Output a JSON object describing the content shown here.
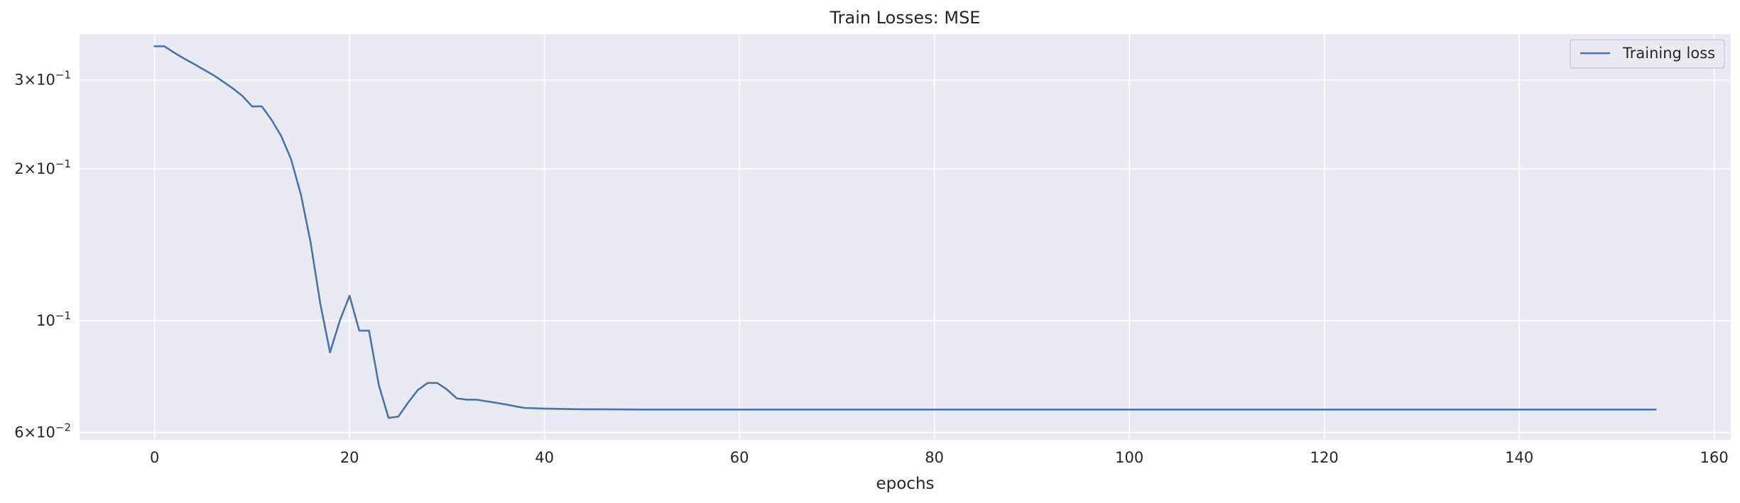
{
  "chart_data": {
    "type": "line",
    "title": "Train Losses:  MSE",
    "xlabel": "epochs",
    "ylabel": "",
    "yscale": "log",
    "xlim": [
      -7.7,
      161.7
    ],
    "ylim": [
      0.058,
      0.37
    ],
    "xticks": [
      0,
      20,
      40,
      60,
      80,
      100,
      120,
      140,
      160
    ],
    "yticks": [
      {
        "value": 0.06,
        "mantissa": "6",
        "exponent": "−2"
      },
      {
        "value": 0.1,
        "mantissa": "",
        "exponent": "−1"
      },
      {
        "value": 0.2,
        "mantissa": "2",
        "exponent": "−1"
      },
      {
        "value": 0.3,
        "mantissa": "3",
        "exponent": "−1"
      }
    ],
    "grid": true,
    "legend_position": "top-right",
    "colors": {
      "background": "#eaeaf2",
      "grid": "#ffffff",
      "line": "#4c72b0"
    },
    "series": [
      {
        "name": "Training loss",
        "x": [
          0,
          1,
          2,
          3,
          4,
          5,
          6,
          7,
          8,
          9,
          10,
          11,
          12,
          13,
          14,
          15,
          16,
          17,
          18,
          19,
          20,
          21,
          22,
          23,
          24,
          25,
          26,
          27,
          28,
          29,
          30,
          31,
          32,
          33,
          34,
          35,
          36,
          37,
          38,
          39,
          40,
          42,
          44,
          46,
          50,
          60,
          80,
          100,
          120,
          140,
          154
        ],
        "y": [
          0.35,
          0.35,
          0.34,
          0.331,
          0.323,
          0.315,
          0.307,
          0.298,
          0.289,
          0.279,
          0.266,
          0.266,
          0.25,
          0.232,
          0.209,
          0.178,
          0.143,
          0.108,
          0.0865,
          0.1,
          0.112,
          0.0955,
          0.0955,
          0.0745,
          0.0641,
          0.0645,
          0.0687,
          0.0728,
          0.0752,
          0.0752,
          0.073,
          0.0701,
          0.0697,
          0.0697,
          0.0692,
          0.0687,
          0.0682,
          0.0676,
          0.0671,
          0.067,
          0.0669,
          0.0668,
          0.0667,
          0.0667,
          0.0666,
          0.0666,
          0.0666,
          0.0666,
          0.0666,
          0.0666,
          0.0666
        ]
      }
    ]
  }
}
